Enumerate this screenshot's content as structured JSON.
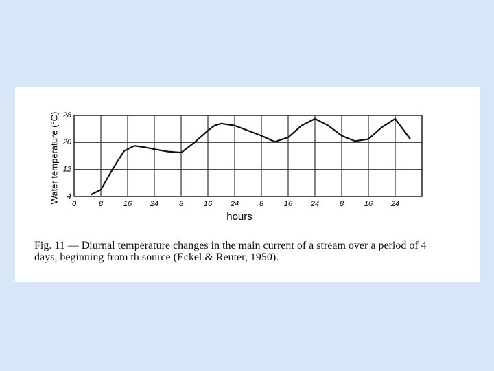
{
  "chart_data": {
    "type": "line",
    "y_label": "Water temperature (°C)",
    "x_label": "hours",
    "caption": "Fig. 11 — Diurnal temperature changes in the main current of a stream over a period of 4 days, beginning from th source (Eckel & Reuter, 1950).",
    "series": [
      {
        "name": "temperature",
        "color": "#111111",
        "x": [
          5,
          8,
          10,
          12.7,
          15,
          18,
          21,
          24,
          28,
          32,
          36,
          40,
          42,
          44,
          48,
          52,
          56,
          60,
          64,
          68,
          72,
          76,
          80,
          84,
          88,
          92,
          96,
          100.5
        ],
        "values": [
          4.5,
          6,
          9.5,
          14,
          17.5,
          19,
          18.6,
          18,
          17.3,
          17,
          20,
          23.5,
          25,
          25.6,
          25,
          23.5,
          22,
          20.2,
          21.5,
          25,
          27,
          25,
          22,
          20.4,
          21,
          24.5,
          27,
          21
        ]
      }
    ],
    "xlim": [
      0,
      104
    ],
    "ylim": [
      4,
      28
    ],
    "xticks": [
      {
        "value": 0,
        "label": "0"
      },
      {
        "value": 8,
        "label": "8"
      },
      {
        "value": 16,
        "label": "16"
      },
      {
        "value": 24,
        "label": "24"
      },
      {
        "value": 32,
        "label": "8"
      },
      {
        "value": 40,
        "label": "16"
      },
      {
        "value": 48,
        "label": "24"
      },
      {
        "value": 56,
        "label": "8"
      },
      {
        "value": 64,
        "label": "16"
      },
      {
        "value": 72,
        "label": "24"
      },
      {
        "value": 80,
        "label": "8"
      },
      {
        "value": 88,
        "label": "16"
      },
      {
        "value": 96,
        "label": "24"
      }
    ],
    "yticks": [
      4,
      12,
      20,
      28
    ],
    "grid": true
  }
}
